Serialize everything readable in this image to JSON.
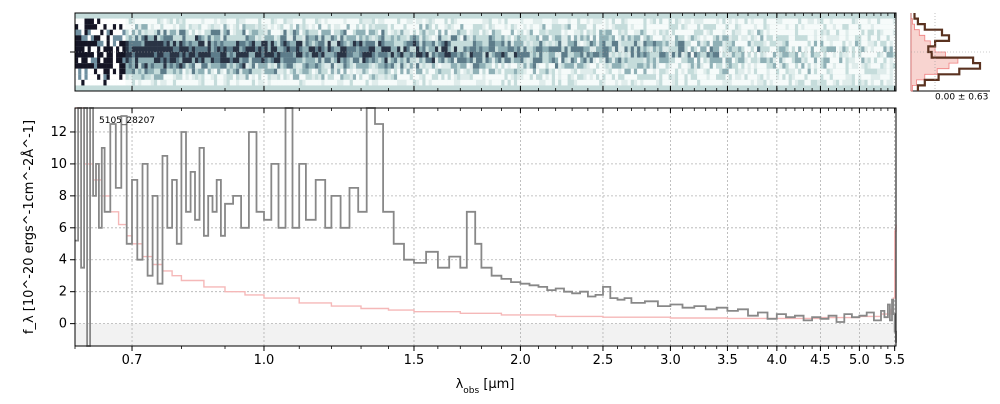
{
  "chart_data": [
    {
      "type": "heatmap",
      "panel": "2d-spectrum",
      "colormap": "bone_r on #c5dcdb background",
      "rows": 14,
      "trace_row_emphasis": [
        6,
        7
      ],
      "x_scale": "log",
      "xlim": [
        0.6,
        5.52
      ]
    },
    {
      "type": "line",
      "panel": "1d-spectrum",
      "label": "5105_28207",
      "xlabel": "λ_obs [μm]",
      "ylabel": "f_λ [10^-20 ergs^-1cm^-2Å^-1]",
      "x_scale": "log",
      "xlim": [
        0.6,
        5.52
      ],
      "ylim": [
        -1.4,
        13.5
      ],
      "xticks": [
        0.7,
        1.0,
        1.5,
        2.0,
        2.5,
        3.0,
        3.5,
        4.0,
        4.5,
        5.0,
        5.5
      ],
      "xtick_labels": [
        "0.7",
        "1.0",
        "1.5",
        "2.0",
        "2.5",
        "3.0",
        "3.5",
        "4.0",
        "4.5",
        "5.0",
        "5.5"
      ],
      "yticks": [
        0,
        2,
        4,
        6,
        8,
        10,
        12
      ],
      "ytick_labels": [
        "0",
        "2",
        "4",
        "6",
        "8",
        "10",
        "12"
      ],
      "grid": true,
      "series": [
        {
          "color": "#888888",
          "style": "step",
          "points": [
            [
              0.6,
              5.2
            ],
            [
              0.605,
              13.5
            ],
            [
              0.61,
              3.5
            ],
            [
              0.615,
              13.5
            ],
            [
              0.62,
              -1.4
            ],
            [
              0.625,
              13.5
            ],
            [
              0.63,
              8
            ],
            [
              0.635,
              10
            ],
            [
              0.64,
              6
            ],
            [
              0.645,
              11
            ],
            [
              0.65,
              7
            ],
            [
              0.66,
              12.5
            ],
            [
              0.67,
              8.5
            ],
            [
              0.68,
              13
            ],
            [
              0.69,
              5
            ],
            [
              0.7,
              9
            ],
            [
              0.71,
              4
            ],
            [
              0.72,
              10
            ],
            [
              0.73,
              3
            ],
            [
              0.74,
              8
            ],
            [
              0.75,
              2.5
            ],
            [
              0.76,
              10.5
            ],
            [
              0.77,
              6
            ],
            [
              0.78,
              9
            ],
            [
              0.79,
              5
            ],
            [
              0.8,
              12
            ],
            [
              0.81,
              7
            ],
            [
              0.82,
              9.5
            ],
            [
              0.83,
              6.5
            ],
            [
              0.84,
              11
            ],
            [
              0.85,
              5.5
            ],
            [
              0.86,
              8
            ],
            [
              0.87,
              7
            ],
            [
              0.88,
              9
            ],
            [
              0.89,
              5.5
            ],
            [
              0.9,
              7.5
            ],
            [
              0.92,
              8
            ],
            [
              0.94,
              6
            ],
            [
              0.96,
              12
            ],
            [
              0.98,
              7
            ],
            [
              1.0,
              6.5
            ],
            [
              1.02,
              10
            ],
            [
              1.04,
              6
            ],
            [
              1.06,
              13.5
            ],
            [
              1.08,
              6
            ],
            [
              1.1,
              10
            ],
            [
              1.12,
              6.5
            ],
            [
              1.15,
              9
            ],
            [
              1.18,
              6
            ],
            [
              1.2,
              8
            ],
            [
              1.23,
              6
            ],
            [
              1.26,
              8.5
            ],
            [
              1.29,
              7
            ],
            [
              1.32,
              13.5
            ],
            [
              1.35,
              12.5
            ],
            [
              1.38,
              7
            ],
            [
              1.42,
              5
            ],
            [
              1.46,
              4
            ],
            [
              1.5,
              3.8
            ],
            [
              1.55,
              4.5
            ],
            [
              1.6,
              3.5
            ],
            [
              1.65,
              4.2
            ],
            [
              1.7,
              3.5
            ],
            [
              1.73,
              7
            ],
            [
              1.77,
              5
            ],
            [
              1.8,
              3.5
            ],
            [
              1.85,
              3
            ],
            [
              1.9,
              2.8
            ],
            [
              1.95,
              2.6
            ],
            [
              2.0,
              2.5
            ],
            [
              2.05,
              2.4
            ],
            [
              2.1,
              2.3
            ],
            [
              2.15,
              2.1
            ],
            [
              2.2,
              2.2
            ],
            [
              2.25,
              2.0
            ],
            [
              2.3,
              1.9
            ],
            [
              2.35,
              2.0
            ],
            [
              2.4,
              1.7
            ],
            [
              2.45,
              1.8
            ],
            [
              2.5,
              2.3
            ],
            [
              2.55,
              1.6
            ],
            [
              2.6,
              1.5
            ],
            [
              2.65,
              1.6
            ],
            [
              2.7,
              1.3
            ],
            [
              2.8,
              1.4
            ],
            [
              2.9,
              1.1
            ],
            [
              3.0,
              1.2
            ],
            [
              3.1,
              1.0
            ],
            [
              3.2,
              1.1
            ],
            [
              3.3,
              0.9
            ],
            [
              3.4,
              1.0
            ],
            [
              3.5,
              0.8
            ],
            [
              3.6,
              0.9
            ],
            [
              3.7,
              0.5
            ],
            [
              3.8,
              0.7
            ],
            [
              3.9,
              0.3
            ],
            [
              4.0,
              0.6
            ],
            [
              4.1,
              0.4
            ],
            [
              4.2,
              0.5
            ],
            [
              4.3,
              0.2
            ],
            [
              4.4,
              0.4
            ],
            [
              4.5,
              0.3
            ],
            [
              4.6,
              0.5
            ],
            [
              4.7,
              0.1
            ],
            [
              4.8,
              0.6
            ],
            [
              4.9,
              0.4
            ],
            [
              5.0,
              0.5
            ],
            [
              5.1,
              0.7
            ],
            [
              5.2,
              0.2
            ],
            [
              5.3,
              0.8
            ],
            [
              5.35,
              0.4
            ],
            [
              5.4,
              1.2
            ],
            [
              5.43,
              0.2
            ],
            [
              5.46,
              1.5
            ],
            [
              5.48,
              0.6
            ],
            [
              5.5,
              -0.5
            ],
            [
              5.52,
              -1.2
            ]
          ]
        },
        {
          "color": "#f5b8b8",
          "style": "step",
          "points": [
            [
              0.6,
              13.5
            ],
            [
              0.615,
              10
            ],
            [
              0.63,
              9
            ],
            [
              0.645,
              8
            ],
            [
              0.66,
              7
            ],
            [
              0.675,
              6.2
            ],
            [
              0.69,
              5.5
            ],
            [
              0.7,
              5
            ],
            [
              0.72,
              4.2
            ],
            [
              0.74,
              3.7
            ],
            [
              0.76,
              3.3
            ],
            [
              0.78,
              3.0
            ],
            [
              0.8,
              2.7
            ],
            [
              0.85,
              2.3
            ],
            [
              0.9,
              2.0
            ],
            [
              0.95,
              1.8
            ],
            [
              1.0,
              1.6
            ],
            [
              1.1,
              1.3
            ],
            [
              1.2,
              1.1
            ],
            [
              1.3,
              0.95
            ],
            [
              1.4,
              0.85
            ],
            [
              1.5,
              0.75
            ],
            [
              1.7,
              0.65
            ],
            [
              1.9,
              0.55
            ],
            [
              2.2,
              0.45
            ],
            [
              2.5,
              0.4
            ],
            [
              3.0,
              0.35
            ],
            [
              3.5,
              0.33
            ],
            [
              4.0,
              0.33
            ],
            [
              4.5,
              0.38
            ],
            [
              5.0,
              0.45
            ],
            [
              5.3,
              0.6
            ],
            [
              5.45,
              0.9
            ],
            [
              5.48,
              1.6
            ],
            [
              5.5,
              5.8
            ],
            [
              5.52,
              6.2
            ]
          ]
        }
      ]
    },
    {
      "type": "line",
      "panel": "spatial-profile",
      "label": "0.00 ± 0.63",
      "series": [
        {
          "name": "",
          "color": "#5a3220",
          "style": "step",
          "values": [
            0.05,
            0.1,
            0.2,
            0.45,
            0.55,
            0.35,
            0.25,
            0.3,
            0.9,
            1.0,
            0.7,
            0.4,
            0.2,
            0.1
          ]
        },
        {
          "name": "",
          "color": "#f4b8b0",
          "style": "fill",
          "values": [
            0.0,
            0.02,
            0.05,
            0.12,
            0.2,
            0.28,
            0.35,
            0.5,
            0.68,
            0.55,
            0.38,
            0.2,
            0.08,
            0.02
          ]
        }
      ]
    }
  ]
}
